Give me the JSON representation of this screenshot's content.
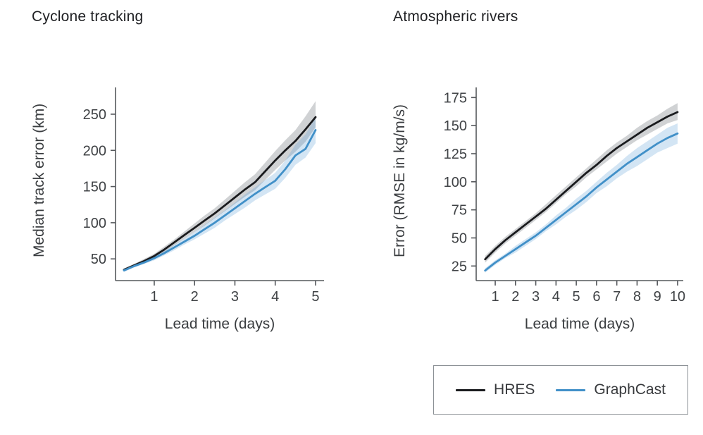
{
  "page": {
    "background": "#ffffff"
  },
  "colors": {
    "hres_line": "#1a1b1e",
    "hres_band": "rgba(110,114,120,0.32)",
    "graphcast_line": "#4190c8",
    "graphcast_band": "rgba(98,160,214,0.28)",
    "axis": "#55585c",
    "tick_text": "#3f4245"
  },
  "chart_data": [
    {
      "type": "line",
      "title": "Cyclone tracking",
      "xlabel": "Lead time (days)",
      "ylabel": "Median track error (km)",
      "xlim": [
        0.04,
        5.21
      ],
      "ylim": [
        20,
        287
      ],
      "xticks": [
        1,
        2,
        3,
        4,
        5
      ],
      "yticks": [
        50,
        100,
        150,
        200,
        250
      ],
      "grid": false,
      "x": [
        0.25,
        0.5,
        0.75,
        1,
        1.25,
        1.5,
        1.75,
        2,
        2.25,
        2.5,
        2.75,
        3,
        3.25,
        3.5,
        3.75,
        4,
        4.25,
        4.5,
        4.75,
        5
      ],
      "series": [
        {
          "name": "HRES",
          "color": "#1a1b1e",
          "band_color": "rgba(110,114,120,0.32)",
          "y": [
            35,
            41,
            47,
            54,
            63,
            73,
            83,
            93,
            103,
            113,
            124,
            135,
            146,
            156,
            171,
            186,
            200,
            213,
            229,
            246
          ],
          "upper": [
            37,
            43,
            50,
            57,
            67,
            77,
            88,
            99,
            110,
            120,
            132,
            144,
            156,
            167,
            183,
            199,
            214,
            228,
            247,
            268
          ],
          "lower": [
            33,
            39,
            44,
            51,
            59,
            69,
            78,
            87,
            96,
            106,
            116,
            126,
            136,
            145,
            159,
            173,
            186,
            198,
            212,
            232
          ]
        },
        {
          "name": "GraphCast",
          "color": "#4190c8",
          "band_color": "rgba(98,160,214,0.28)",
          "y": [
            34,
            40,
            45,
            51,
            58,
            66,
            74,
            82,
            91,
            100,
            110,
            120,
            130,
            140,
            149,
            158,
            174,
            193,
            202,
            228
          ],
          "upper": [
            36,
            42,
            47,
            54,
            61,
            70,
            78,
            87,
            97,
            107,
            117,
            128,
            139,
            149,
            159,
            169,
            186,
            208,
            222,
            246
          ],
          "lower": [
            32,
            38,
            43,
            48,
            55,
            62,
            70,
            77,
            85,
            93,
            103,
            112,
            121,
            131,
            139,
            147,
            162,
            180,
            190,
            210
          ]
        }
      ]
    },
    {
      "type": "line",
      "title": "Atmospheric rivers",
      "xlabel": "Lead time (days)",
      "ylabel": "Error (RMSE in kg/m/s)",
      "xlim": [
        0.06,
        10.28
      ],
      "ylim": [
        12,
        184
      ],
      "xticks": [
        1,
        2,
        3,
        4,
        5,
        6,
        7,
        8,
        9,
        10
      ],
      "yticks": [
        25,
        50,
        75,
        100,
        125,
        150,
        175
      ],
      "grid": false,
      "x": [
        0.5,
        1,
        1.5,
        2,
        2.5,
        3,
        3.5,
        4,
        4.5,
        5,
        5.5,
        6,
        6.5,
        7,
        7.5,
        8,
        8.5,
        9,
        9.5,
        10
      ],
      "series": [
        {
          "name": "HRES",
          "color": "#1a1b1e",
          "band_color": "rgba(110,114,120,0.32)",
          "y": [
            31,
            40,
            48,
            55,
            62,
            69,
            76,
            84,
            92,
            100,
            108,
            115,
            123,
            130,
            136,
            142,
            148,
            153,
            158,
            162
          ],
          "upper": [
            34,
            43,
            51,
            58,
            65,
            72,
            80,
            88,
            96,
            104,
            112,
            120,
            128,
            135,
            141,
            148,
            154,
            159,
            165,
            170
          ],
          "lower": [
            28,
            37,
            45,
            52,
            59,
            66,
            73,
            81,
            89,
            96,
            104,
            111,
            118,
            125,
            131,
            137,
            142,
            147,
            152,
            155
          ]
        },
        {
          "name": "GraphCast",
          "color": "#4190c8",
          "band_color": "rgba(98,160,214,0.28)",
          "y": [
            21,
            28,
            34,
            40,
            46,
            52,
            59,
            66,
            73,
            80,
            87,
            95,
            102,
            109,
            116,
            122,
            128,
            134,
            139,
            143
          ],
          "upper": [
            23,
            30,
            36,
            43,
            49,
            55,
            62,
            70,
            77,
            85,
            92,
            100,
            108,
            115,
            123,
            130,
            136,
            142,
            148,
            152
          ],
          "lower": [
            19,
            26,
            32,
            37,
            43,
            49,
            56,
            62,
            69,
            75,
            82,
            90,
            96,
            103,
            109,
            114,
            120,
            126,
            130,
            134
          ]
        }
      ]
    }
  ],
  "legend": {
    "items": [
      {
        "label": "HRES",
        "color": "#1a1b1e"
      },
      {
        "label": "GraphCast",
        "color": "#4190c8"
      }
    ]
  }
}
